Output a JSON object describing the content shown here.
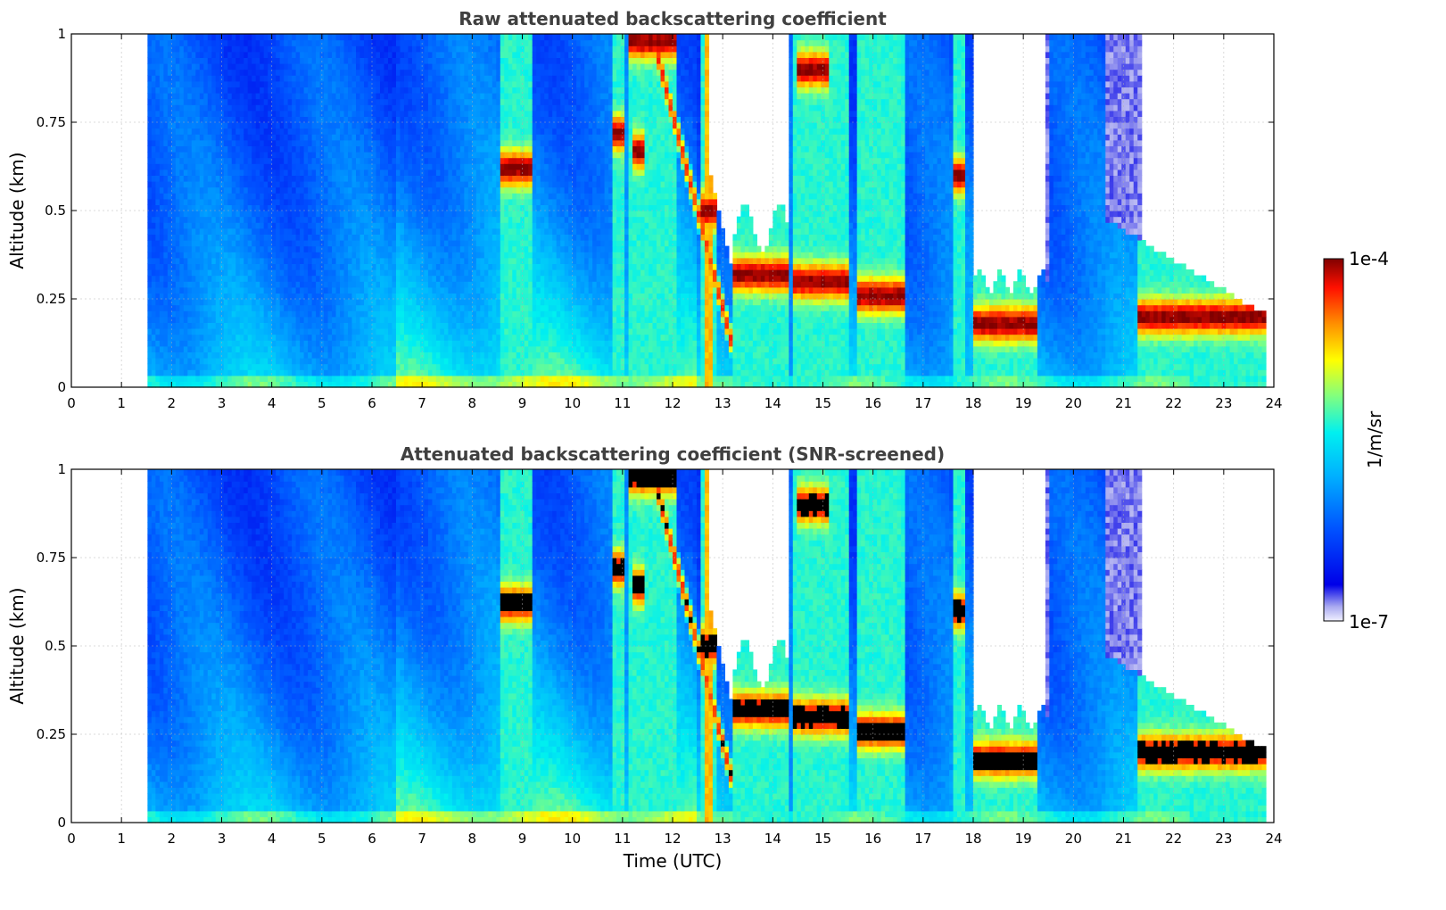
{
  "chart_data": [
    {
      "type": "heatmap",
      "title": "Raw attenuated backscattering coefficient",
      "xlabel": "",
      "ylabel": "Altitude (km)",
      "xlim": [
        0,
        24
      ],
      "ylim": [
        0,
        1
      ],
      "x_ticks": [
        "0",
        "1",
        "2",
        "3",
        "4",
        "5",
        "6",
        "7",
        "8",
        "9",
        "10",
        "11",
        "12",
        "13",
        "14",
        "15",
        "16",
        "17",
        "18",
        "19",
        "20",
        "21",
        "22",
        "23",
        "24"
      ],
      "y_ticks": [
        "0",
        "0.25",
        "0.5",
        "0.75",
        "1"
      ],
      "grid": true,
      "colorscale": "jet",
      "data_start_hour": 1.55,
      "data_end_hour": 23.8,
      "cloud_layers": [
        {
          "hour_start": 8.55,
          "hour_end": 9.2,
          "altitude_km": 0.62
        },
        {
          "hour_start": 10.8,
          "hour_end": 11.0,
          "altitude_km": 0.72
        },
        {
          "hour_start": 11.2,
          "hour_end": 11.45,
          "altitude_km": 0.67
        },
        {
          "hour_start": 11.1,
          "hour_end": 12.1,
          "altitude_km": 0.98
        },
        {
          "hour_start": 12.6,
          "hour_end": 12.9,
          "altitude_km": 0.5
        },
        {
          "hour_start": 13.2,
          "hour_end": 14.3,
          "altitude_km": 0.32
        },
        {
          "hour_start": 14.5,
          "hour_end": 15.1,
          "altitude_km": 0.9
        },
        {
          "hour_start": 14.4,
          "hour_end": 15.5,
          "altitude_km": 0.3
        },
        {
          "hour_start": 15.7,
          "hour_end": 16.6,
          "altitude_km": 0.26
        },
        {
          "hour_start": 17.6,
          "hour_end": 17.85,
          "altitude_km": 0.6
        },
        {
          "hour_start": 18.0,
          "hour_end": 19.3,
          "altitude_km": 0.18
        },
        {
          "hour_start": 21.3,
          "hour_end": 23.8,
          "altitude_km": 0.2
        }
      ]
    },
    {
      "type": "heatmap",
      "title": "Attenuated backscattering coefficient (SNR-screened)",
      "xlabel": "Time (UTC)",
      "ylabel": "Altitude (km)",
      "xlim": [
        0,
        24
      ],
      "ylim": [
        0,
        1
      ],
      "x_ticks": [
        "0",
        "1",
        "2",
        "3",
        "4",
        "5",
        "6",
        "7",
        "8",
        "9",
        "10",
        "11",
        "12",
        "13",
        "14",
        "15",
        "16",
        "17",
        "18",
        "19",
        "20",
        "21",
        "22",
        "23",
        "24"
      ],
      "y_ticks": [
        "0",
        "0.25",
        "0.5",
        "0.75",
        "1"
      ],
      "grid": true,
      "colorscale": "jet",
      "data_start_hour": 1.55,
      "data_end_hour": 23.8,
      "saturated_color": "#000000"
    }
  ],
  "colorbar": {
    "label": "1/m/sr",
    "max_label": "1e-4",
    "min_label": "1e-7",
    "colors": [
      "#e6e6f8",
      "#0000ff",
      "#00a0ff",
      "#00ffff",
      "#ffff00",
      "#ff8000",
      "#ff0000",
      "#800000"
    ]
  }
}
